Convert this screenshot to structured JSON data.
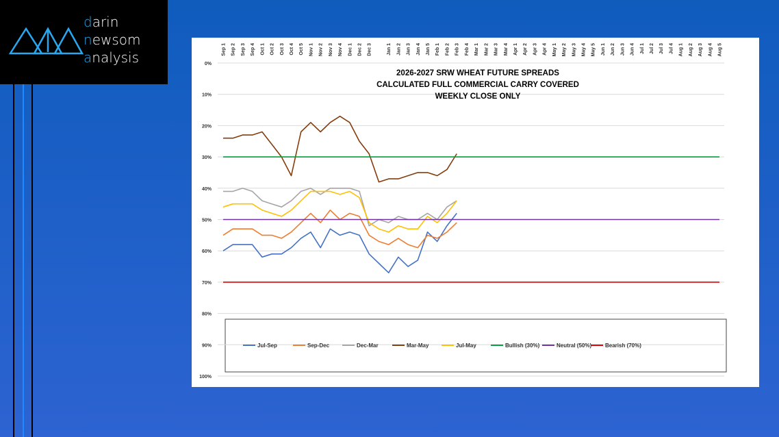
{
  "brand": [
    "darin",
    "newsom",
    "analysis"
  ],
  "chart_data": {
    "type": "line",
    "title": [
      "2026-2027 SRW WHEAT FUTURE SPREADS",
      "CALCULATED FULL COMMERCIAL CARRY COVERED",
      "WEEKLY CLOSE ONLY"
    ],
    "categories": [
      "Sep 1",
      "Sep 2",
      "Sep 3",
      "Sep 4",
      "Oct 1",
      "Oct 2",
      "Oct 3",
      "Oct 4",
      "Oct 5",
      "Nov 1",
      "Nov 2",
      "Nov 3",
      "Nov 4",
      "Dec 1",
      "Dec 2",
      "Dec 3",
      null,
      "Jan 1",
      "Jan 2",
      "Jan 3",
      "Jan 4",
      "Jan 5",
      "Feb 1",
      "Feb 2",
      "Feb 3",
      "Feb 4",
      "Mar 1",
      "Mar 2",
      "Mar 3",
      "Mar 4",
      "Apr 1",
      "Apr 2",
      "Apr 3",
      "Apr 4",
      "May 1",
      "May 2",
      "May 3",
      "May 4",
      "May 5",
      "Jun 1",
      "Jun 2",
      "Jun 3",
      "Jun 4",
      "Jul 1",
      "Jul 2",
      "Jul 3",
      "Jul 4",
      "Aug 1",
      "Aug 2",
      "Aug 3",
      "Aug 4",
      "Aug 5"
    ],
    "ylim": [
      0,
      100
    ],
    "inverted": true,
    "grid": true,
    "legend": "bottom",
    "yticks": [
      {
        "value": 0,
        "label": "0%"
      },
      {
        "value": 10,
        "label": "10%"
      },
      {
        "value": 20,
        "label": "20%"
      },
      {
        "value": 30,
        "label": "30%"
      },
      {
        "value": 40,
        "label": "40%"
      },
      {
        "value": 50,
        "label": "50%"
      },
      {
        "value": 60,
        "label": "60%"
      },
      {
        "value": 70,
        "label": "70%"
      },
      {
        "value": 80,
        "label": "80%"
      },
      {
        "value": 90,
        "label": "90%"
      },
      {
        "value": 100,
        "label": "100%"
      }
    ],
    "series": [
      {
        "name": "Jul-Sep",
        "color": "#4472c4",
        "values": [
          60,
          58,
          58,
          58,
          62,
          61,
          61,
          59,
          56,
          54,
          59,
          53,
          55,
          54,
          55,
          61,
          64,
          67,
          62,
          65,
          63,
          54,
          57,
          52,
          48,
          null,
          null,
          null,
          null,
          null,
          null,
          null,
          null,
          null,
          null,
          null,
          null,
          null,
          null,
          null,
          null,
          null,
          null,
          null,
          null,
          null,
          null,
          null,
          null,
          null,
          null,
          null
        ]
      },
      {
        "name": "Sep-Dec",
        "color": "#ed7d31",
        "values": [
          55,
          53,
          53,
          53,
          55,
          55,
          56,
          54,
          51,
          48,
          51,
          47,
          50,
          48,
          49,
          55,
          57,
          58,
          56,
          58,
          59,
          55,
          56,
          54,
          51,
          null,
          null,
          null,
          null,
          null,
          null,
          null,
          null,
          null,
          null,
          null,
          null,
          null,
          null,
          null,
          null,
          null,
          null,
          null,
          null,
          null,
          null,
          null,
          null,
          null,
          null,
          null
        ]
      },
      {
        "name": "Dec-Mar",
        "color": "#a5a5a5",
        "values": [
          41,
          41,
          40,
          41,
          44,
          45,
          46,
          44,
          41,
          40,
          42,
          40,
          40,
          40,
          41,
          52,
          50,
          51,
          49,
          50,
          50,
          48,
          50,
          46,
          44,
          null,
          null,
          null,
          null,
          null,
          null,
          null,
          null,
          null,
          null,
          null,
          null,
          null,
          null,
          null,
          null,
          null,
          null,
          null,
          null,
          null,
          null,
          null,
          null,
          null,
          null,
          null
        ]
      },
      {
        "name": "Mar-May",
        "color": "#843c0c",
        "values": [
          24,
          24,
          23,
          23,
          22,
          26,
          30,
          36,
          22,
          19,
          22,
          19,
          17,
          19,
          25,
          29,
          38,
          37,
          37,
          36,
          35,
          35,
          36,
          34,
          29,
          null,
          null,
          null,
          null,
          null,
          null,
          null,
          null,
          null,
          null,
          null,
          null,
          null,
          null,
          null,
          null,
          null,
          null,
          null,
          null,
          null,
          null,
          null,
          null,
          null,
          null,
          null
        ]
      },
      {
        "name": "Jul-May",
        "color": "#ffc000",
        "values": [
          46,
          45,
          45,
          45,
          47,
          48,
          49,
          47,
          44,
          41,
          41,
          41,
          42,
          41,
          43,
          51,
          53,
          54,
          52,
          53,
          53,
          49,
          51,
          48,
          44,
          null,
          null,
          null,
          null,
          null,
          null,
          null,
          null,
          null,
          null,
          null,
          null,
          null,
          null,
          null,
          null,
          null,
          null,
          null,
          null,
          null,
          null,
          null,
          null,
          null,
          null,
          null
        ]
      },
      {
        "name": "Bullish (30%)",
        "color": "#00a03e",
        "values": [
          30,
          30,
          30,
          30,
          30,
          30,
          30,
          30,
          30,
          30,
          30,
          30,
          30,
          30,
          30,
          30,
          30,
          30,
          30,
          30,
          30,
          30,
          30,
          30,
          30,
          30,
          30,
          30,
          30,
          30,
          30,
          30,
          30,
          30,
          30,
          30,
          30,
          30,
          30,
          30,
          30,
          30,
          30,
          30,
          30,
          30,
          30,
          30,
          30,
          30,
          30,
          30
        ]
      },
      {
        "name": "Neutral (50%)",
        "color": "#7030a0",
        "values": [
          50,
          50,
          50,
          50,
          50,
          50,
          50,
          50,
          50,
          50,
          50,
          50,
          50,
          50,
          50,
          50,
          50,
          50,
          50,
          50,
          50,
          50,
          50,
          50,
          50,
          50,
          50,
          50,
          50,
          50,
          50,
          50,
          50,
          50,
          50,
          50,
          50,
          50,
          50,
          50,
          50,
          50,
          50,
          50,
          50,
          50,
          50,
          50,
          50,
          50,
          50,
          50
        ]
      },
      {
        "name": "Bearish (70%)",
        "color": "#e00000",
        "values": [
          70,
          70,
          70,
          70,
          70,
          70,
          70,
          70,
          70,
          70,
          70,
          70,
          70,
          70,
          70,
          70,
          70,
          70,
          70,
          70,
          70,
          70,
          70,
          70,
          70,
          70,
          70,
          70,
          70,
          70,
          70,
          70,
          70,
          70,
          70,
          70,
          70,
          70,
          70,
          70,
          70,
          70,
          70,
          70,
          70,
          70,
          70,
          70,
          70,
          70,
          70,
          70
        ]
      }
    ]
  }
}
